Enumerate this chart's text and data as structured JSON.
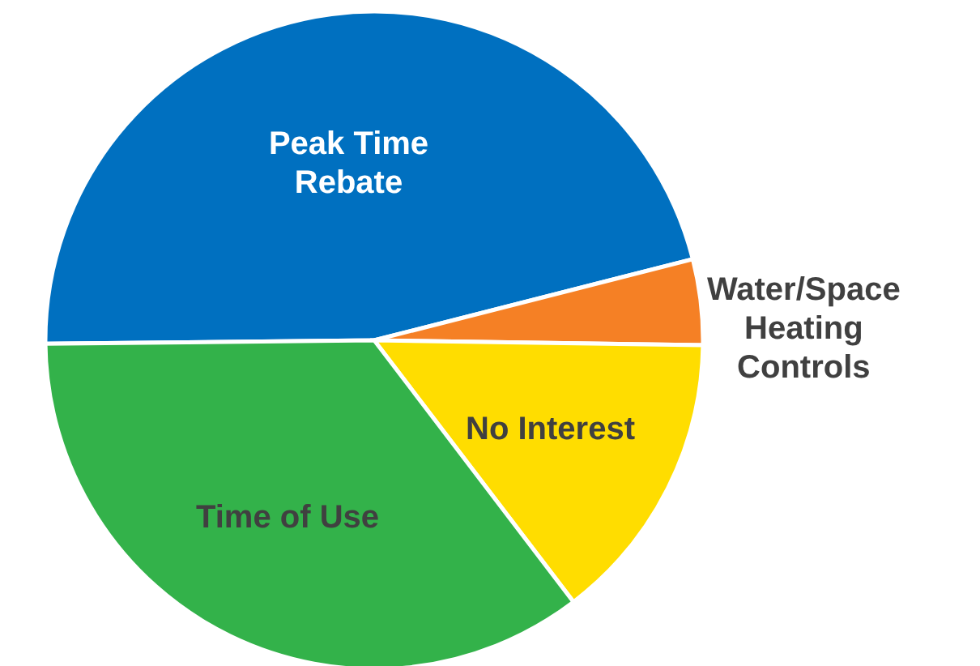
{
  "chart_data": {
    "type": "pie",
    "categories": [
      "Peak Time Rebate",
      "Water/Space Heating Controls",
      "No Interest",
      "Time of Use"
    ],
    "values": [
      46.2,
      4.2,
      14.4,
      35.2
    ],
    "colors": [
      "#0070c0",
      "#f58025",
      "#ffdd00",
      "#33b24a"
    ]
  }
}
